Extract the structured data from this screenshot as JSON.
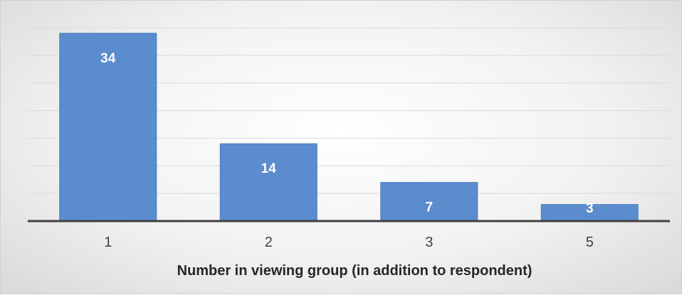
{
  "chart_data": {
    "type": "bar",
    "categories": [
      "1",
      "2",
      "3",
      "5"
    ],
    "values": [
      34,
      14,
      7,
      3
    ],
    "title": "",
    "xlabel": "Number in viewing group (in addition to respondent)",
    "ylabel": "",
    "ylim": [
      0,
      35
    ],
    "grid": true,
    "legend": "none",
    "bar_color": "#5b8ccd",
    "bar_edge_color": "#4a7bbd",
    "gridline_color": "#d9d9d9",
    "axis_line_color": "#404040"
  }
}
